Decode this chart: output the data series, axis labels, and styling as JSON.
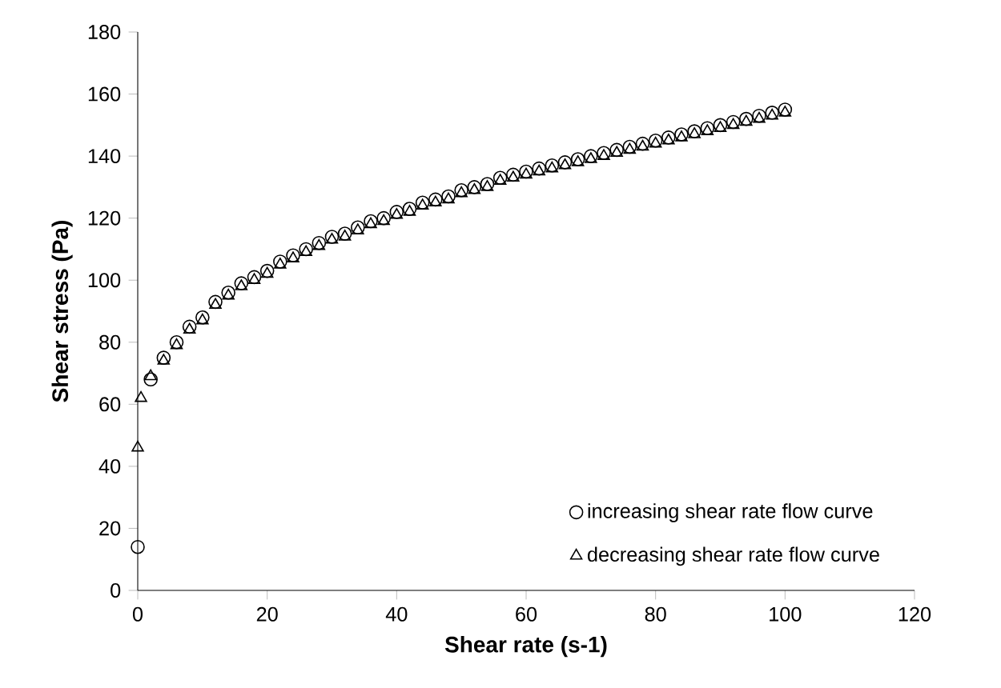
{
  "chart_data": {
    "type": "scatter",
    "xlabel": "Shear rate (s-1)",
    "ylabel": "Shear stress (Pa)",
    "xlim": [
      0,
      120
    ],
    "ylim": [
      0,
      180
    ],
    "xticks": [
      0,
      20,
      40,
      60,
      80,
      100,
      120
    ],
    "yticks": [
      0,
      20,
      40,
      60,
      80,
      100,
      120,
      140,
      160,
      180
    ],
    "grid": false,
    "legend": "bottom right",
    "series": [
      {
        "name": "increasing shear rate flow curve",
        "color": "#000000",
        "marker": "circle",
        "x": [
          0,
          2,
          4,
          6,
          8,
          10,
          12,
          14,
          16,
          18,
          20,
          22,
          24,
          26,
          28,
          30,
          32,
          34,
          36,
          38,
          40,
          42,
          44,
          46,
          48,
          50,
          52,
          54,
          56,
          58,
          60,
          62,
          64,
          66,
          68,
          70,
          72,
          74,
          76,
          78,
          80,
          82,
          84,
          86,
          88,
          90,
          92,
          94,
          96,
          98,
          100
        ],
        "values": [
          14,
          68,
          75,
          80,
          85,
          88,
          93,
          96,
          99,
          101,
          103,
          106,
          108,
          110,
          112,
          114,
          115,
          117,
          119,
          120,
          122,
          123,
          125,
          126,
          127,
          129,
          130,
          131,
          133,
          134,
          135,
          136,
          137,
          138,
          139,
          140,
          141,
          142,
          143,
          144,
          145,
          146,
          147,
          148,
          149,
          150,
          151,
          152,
          153,
          154,
          155
        ]
      },
      {
        "name": "decreasing shear rate flow curve",
        "color": "#000000",
        "marker": "triangle",
        "x": [
          0,
          0.5,
          2,
          4,
          6,
          8,
          10,
          12,
          14,
          16,
          18,
          20,
          22,
          24,
          26,
          28,
          30,
          32,
          34,
          36,
          38,
          40,
          42,
          44,
          46,
          48,
          50,
          52,
          54,
          56,
          58,
          60,
          62,
          64,
          66,
          68,
          70,
          72,
          74,
          76,
          78,
          80,
          82,
          84,
          86,
          88,
          90,
          92,
          94,
          96,
          98,
          100
        ],
        "values": [
          46,
          62,
          69,
          74,
          79,
          84,
          87,
          92,
          95,
          98,
          100,
          102,
          105,
          107,
          109,
          111,
          113,
          114,
          116,
          118,
          119,
          121,
          122,
          124,
          125,
          126,
          128,
          129,
          130,
          132,
          133,
          134,
          135,
          136,
          137,
          138,
          139,
          140,
          141,
          142,
          143,
          144,
          145,
          146,
          147,
          148,
          149,
          150,
          151,
          152,
          153,
          154
        ]
      }
    ]
  }
}
